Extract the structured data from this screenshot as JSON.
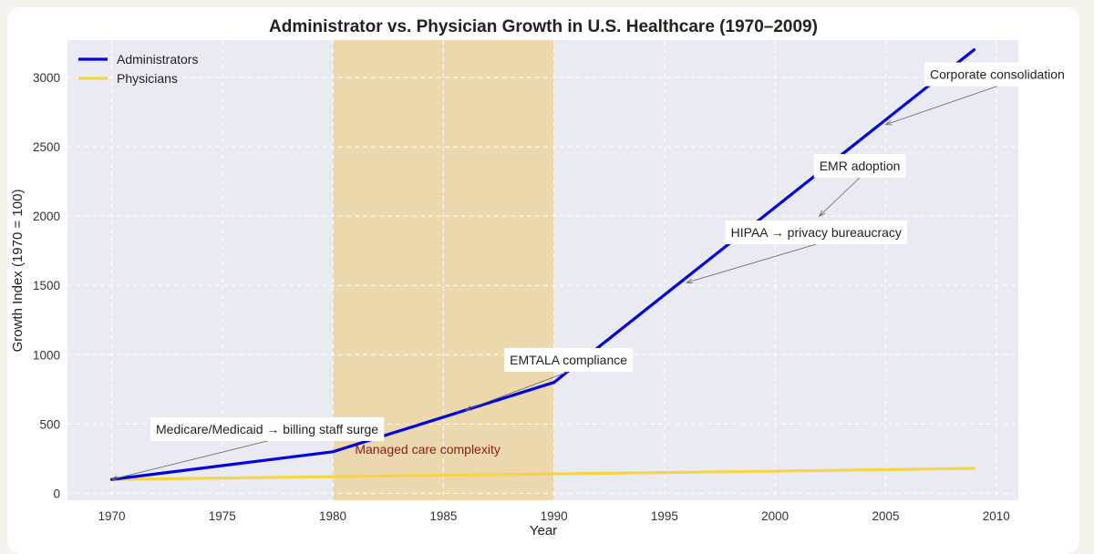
{
  "chart_data": {
    "type": "line",
    "title": "Administrator vs. Physician Growth in U.S. Healthcare (1970–2009)",
    "xlabel": "Year",
    "ylabel": "Growth Index (1970 = 100)",
    "xlim": [
      1968,
      2011
    ],
    "ylim": [
      -50,
      3270
    ],
    "xticks": [
      1970,
      1975,
      1980,
      1985,
      1990,
      1995,
      2000,
      2005,
      2010
    ],
    "yticks": [
      0,
      500,
      1000,
      1500,
      2000,
      2500,
      3000
    ],
    "grid": true,
    "legend_position": "top-left",
    "background_color": "#eaeaf2",
    "series": [
      {
        "name": "Administrators",
        "color": "#0000e6",
        "x": [
          1970,
          1980,
          1990,
          2009
        ],
        "y": [
          100,
          300,
          800,
          3200
        ]
      },
      {
        "name": "Physicians",
        "color": "#f5d547",
        "x": [
          1970,
          1980,
          1990,
          2000,
          2009
        ],
        "y": [
          100,
          120,
          140,
          160,
          180
        ]
      }
    ],
    "shaded_region": {
      "x_start": 1980,
      "x_end": 1990,
      "color": "#ecd8ad",
      "label": "Managed care complexity",
      "label_color": "#8b1a1a",
      "label_anchor": [
        1981,
        285
      ]
    },
    "annotations": [
      {
        "text": "Medicare/Medicaid → billing staff surge",
        "point": [
          1970,
          100
        ],
        "text_anchor": [
          1972,
          430
        ]
      },
      {
        "text": "EMTALA compliance",
        "point": [
          1986,
          600
        ],
        "text_anchor": [
          1988,
          930
        ]
      },
      {
        "text": "HIPAA → privacy bureaucracy",
        "point": [
          1996,
          1520
        ],
        "text_anchor": [
          1998,
          1850
        ]
      },
      {
        "text": "EMR adoption",
        "point": [
          2002,
          2000
        ],
        "text_anchor": [
          2002,
          2330
        ]
      },
      {
        "text": "Corporate consolidation",
        "point": [
          2005,
          2660
        ],
        "text_anchor": [
          2007,
          2990
        ]
      }
    ]
  }
}
